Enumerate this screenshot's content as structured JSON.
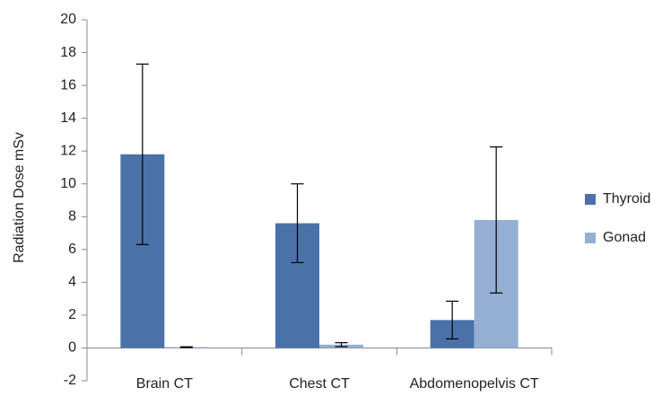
{
  "chart_data": {
    "type": "bar",
    "y_label": "Radiation Dose mSv",
    "categories": [
      "Brain CT",
      "Chest CT",
      "Abdomenopelvis CT"
    ],
    "series": [
      {
        "name": "Thyroid",
        "color": "#4a72a8",
        "values": [
          11.8,
          7.6,
          1.7
        ],
        "errors": [
          5.5,
          2.4,
          1.15
        ]
      },
      {
        "name": "Gonad",
        "color": "#95aed3",
        "values": [
          0.05,
          0.2,
          7.8
        ],
        "errors": [
          0.02,
          0.12,
          4.45
        ]
      }
    ],
    "ylim": [
      -2,
      20
    ],
    "yticks": [
      -2,
      0,
      2,
      4,
      6,
      8,
      10,
      12,
      14,
      16,
      18,
      20
    ],
    "legend": "right"
  }
}
